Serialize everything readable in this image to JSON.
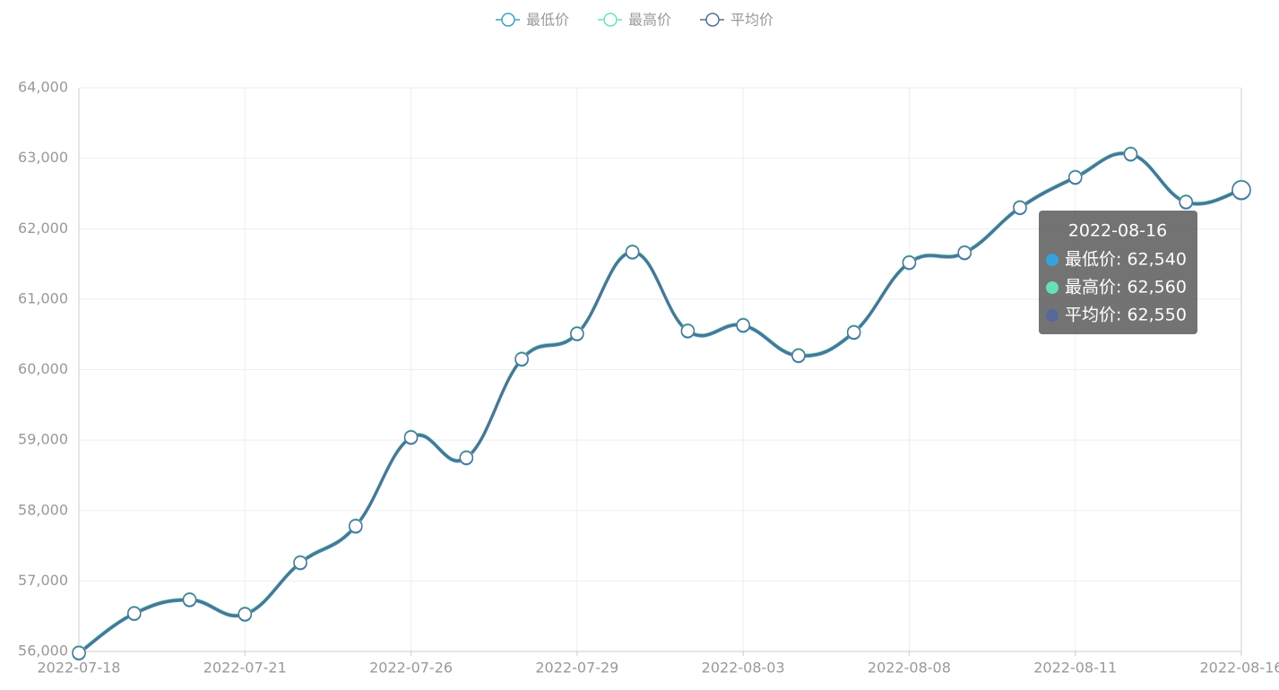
{
  "chart_data": {
    "type": "line",
    "categories": [
      "2022-07-18",
      null,
      null,
      "2022-07-21",
      null,
      null,
      "2022-07-26",
      null,
      null,
      "2022-07-29",
      null,
      null,
      "2022-08-03",
      null,
      null,
      "2022-08-08",
      null,
      null,
      "2022-08-11",
      null,
      null,
      "2022-08-16"
    ],
    "series": [
      {
        "name": "最低价",
        "color": "#3ba2c9",
        "values": [
          55970,
          56530,
          56725,
          56520,
          57250,
          57770,
          59030,
          58740,
          60140,
          60500,
          61660,
          60540,
          60620,
          60190,
          60520,
          61510,
          61650,
          62290,
          62720,
          63050,
          62370,
          62540
        ]
      },
      {
        "name": "最高价",
        "color": "#6fe0bd",
        "values": [
          55990,
          56550,
          56745,
          56540,
          57270,
          57790,
          59050,
          58760,
          60160,
          60520,
          61680,
          60560,
          60640,
          60210,
          60540,
          61530,
          61670,
          62310,
          62740,
          63070,
          62390,
          62560
        ]
      },
      {
        "name": "平均价",
        "color": "#4f7393",
        "values": [
          55980,
          56540,
          56735,
          56530,
          57260,
          57780,
          59040,
          58750,
          60150,
          60510,
          61670,
          60550,
          60630,
          60200,
          60530,
          61520,
          61660,
          62300,
          62730,
          63060,
          62380,
          62550
        ]
      }
    ],
    "ylim": [
      56000,
      64000
    ],
    "yticks": [
      {
        "value": 56000,
        "label": "56,000"
      },
      {
        "value": 57000,
        "label": "57,000"
      },
      {
        "value": 58000,
        "label": "58,000"
      },
      {
        "value": 59000,
        "label": "59,000"
      },
      {
        "value": 60000,
        "label": "60,000"
      },
      {
        "value": 61000,
        "label": "61,000"
      },
      {
        "value": 62000,
        "label": "62,000"
      },
      {
        "value": 63000,
        "label": "63,000"
      },
      {
        "value": 64000,
        "label": "64,000"
      }
    ],
    "grid": true,
    "legend": "top",
    "tooltip": {
      "index": 21,
      "dot_colors": [
        "#37a2da",
        "#67e0b7",
        "#56689a"
      ],
      "items": [
        "最低价: 62,540",
        "最高价: 62,560",
        "平均价: 62,550"
      ]
    }
  }
}
